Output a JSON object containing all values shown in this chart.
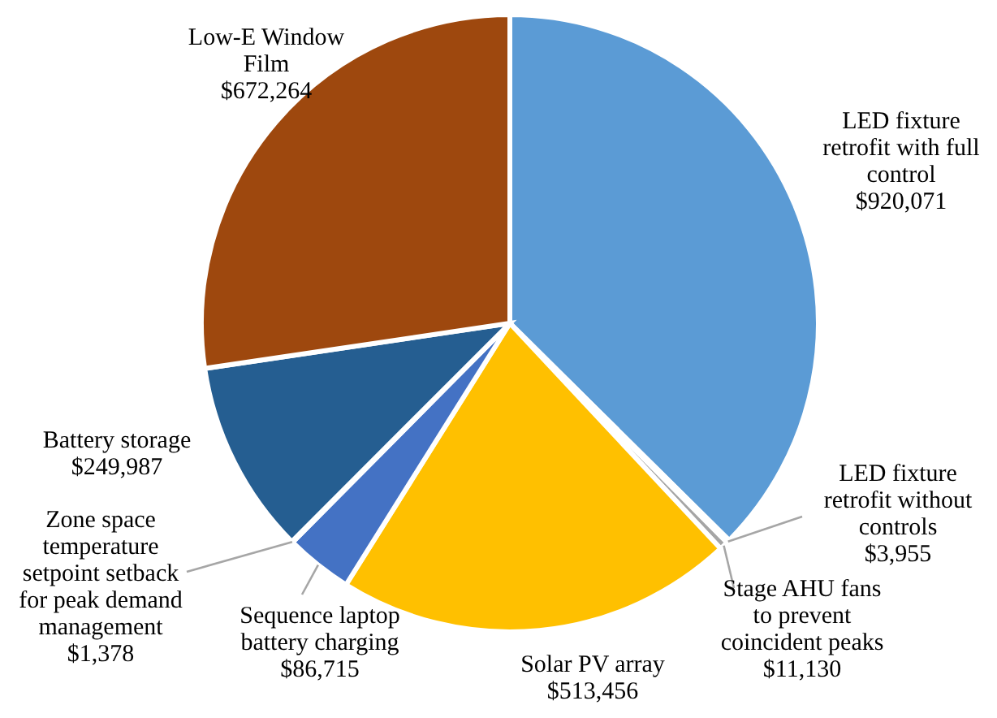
{
  "chart_data": {
    "type": "pie",
    "categories": [
      "LED fixture retrofit with full control",
      "LED fixture retrofit without controls",
      "Stage AHU fans to prevent coincident peaks",
      "Solar PV array",
      "Sequence laptop battery charging",
      "Zone space temperature setpoint setback for peak demand management",
      "Battery storage",
      "Low-E Window Film"
    ],
    "values": [
      920071,
      3955,
      11130,
      513456,
      86715,
      1378,
      249987,
      672264
    ],
    "value_labels": [
      "$920,071",
      "$3,955",
      "$11,130",
      "$513,456",
      "$86,715",
      "$1,378",
      "$249,987",
      "$672,264"
    ],
    "colors": [
      "#5b9bd5",
      "#ed7d31",
      "#a5a5a5",
      "#ffc000",
      "#4472c4",
      "#70ad47",
      "#255e91",
      "#9e480e"
    ]
  }
}
